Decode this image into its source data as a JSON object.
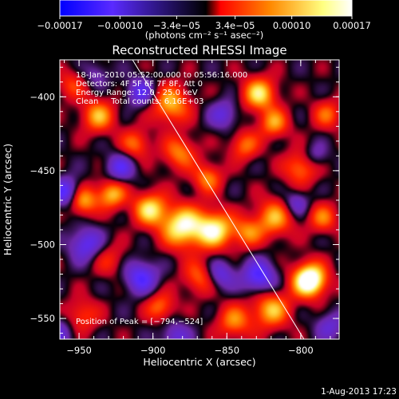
{
  "chart_data": {
    "type": "heatmap",
    "title": "Reconstructed RHESSI Image",
    "xlabel": "Heliocentric X (arcsec)",
    "ylabel": "Heliocentric Y (arcsec)",
    "xlim": [
      -963,
      -774
    ],
    "ylim": [
      -564,
      -375
    ],
    "xticks": [
      -950,
      -900,
      -850,
      -800
    ],
    "xtick_labels": [
      "−950",
      "−900",
      "−850",
      "−800"
    ],
    "yticks": [
      -400,
      -450,
      -500,
      -550
    ],
    "ytick_labels": [
      "−400",
      "−450",
      "−500",
      "−550"
    ],
    "colorbar": {
      "range": [
        -0.00017,
        0.00017
      ],
      "ticks": [
        -0.00017,
        -0.0001,
        -3.4e-05,
        3.4e-05,
        0.0001,
        0.00017
      ],
      "tick_labels": [
        "−0.00017",
        "−0.00010",
        "−3.4e−05",
        "3.4e−05",
        "0.00010",
        "0.00017"
      ],
      "unit_label": "(photons cm⁻² s⁻¹ asec⁻²)",
      "colors": [
        "#0000ff",
        "#5a2aff",
        "#000000",
        "#ff0000",
        "#ff8800",
        "#ffff80",
        "#ffffff"
      ]
    },
    "annotations": [
      "18-Jan-2010 05:52:00.000 to 05:56:16.000",
      "Detectors: 4F 5F 6F 7F 8F, Att 0",
      "Energy Range: 12.0 - 25.0 keV",
      "Clean     Total counts: 6.16E+03"
    ],
    "peak_label": "Position of Peak = [−794,−524]",
    "peak": [
      -794,
      -524
    ],
    "limb_line": {
      "x": [
        -923,
        -796
      ],
      "y": [
        -360,
        -567
      ]
    },
    "image_sources": [
      {
        "x": -880,
        "y": -488,
        "amp": 1.0,
        "sigma": 10
      },
      {
        "x": -858,
        "y": -490,
        "amp": 0.95,
        "sigma": 9
      },
      {
        "x": -902,
        "y": -476,
        "amp": 0.85,
        "sigma": 8
      },
      {
        "x": -928,
        "y": -466,
        "amp": 0.75,
        "sigma": 7
      },
      {
        "x": -948,
        "y": -470,
        "amp": 0.8,
        "sigma": 7
      },
      {
        "x": -937,
        "y": -413,
        "amp": 0.7,
        "sigma": 8
      },
      {
        "x": -912,
        "y": -432,
        "amp": 0.55,
        "sigma": 7
      },
      {
        "x": -882,
        "y": -438,
        "amp": 0.6,
        "sigma": 8
      },
      {
        "x": -888,
        "y": -405,
        "amp": 0.75,
        "sigma": 9
      },
      {
        "x": -863,
        "y": -455,
        "amp": 0.6,
        "sigma": 7
      },
      {
        "x": -828,
        "y": -398,
        "amp": 0.85,
        "sigma": 8
      },
      {
        "x": -818,
        "y": -418,
        "amp": 0.65,
        "sigma": 7
      },
      {
        "x": -838,
        "y": -433,
        "amp": 0.55,
        "sigma": 7
      },
      {
        "x": -800,
        "y": -448,
        "amp": 0.6,
        "sigma": 8
      },
      {
        "x": -818,
        "y": -482,
        "amp": 0.7,
        "sigma": 9
      },
      {
        "x": -836,
        "y": -492,
        "amp": 0.55,
        "sigma": 7
      },
      {
        "x": -794,
        "y": -524,
        "amp": 1.35,
        "sigma": 8
      },
      {
        "x": -820,
        "y": -544,
        "amp": 0.75,
        "sigma": 9
      },
      {
        "x": -868,
        "y": -522,
        "amp": 0.55,
        "sigma": 8
      },
      {
        "x": -895,
        "y": -542,
        "amp": 0.55,
        "sigma": 7
      },
      {
        "x": -845,
        "y": -552,
        "amp": 0.6,
        "sigma": 8
      },
      {
        "x": -948,
        "y": -548,
        "amp": 0.45,
        "sigma": 8
      },
      {
        "x": -782,
        "y": -412,
        "amp": 0.5,
        "sigma": 7
      },
      {
        "x": -785,
        "y": -482,
        "amp": 0.55,
        "sigma": 7
      },
      {
        "x": -930,
        "y": -510,
        "amp": 0.35,
        "sigma": 8
      },
      {
        "x": -955,
        "y": -392,
        "amp": 0.4,
        "sigma": 7
      },
      {
        "x": -958,
        "y": -465,
        "amp": -0.75,
        "sigma": 7
      },
      {
        "x": -922,
        "y": -448,
        "amp": -0.55,
        "sigma": 7
      },
      {
        "x": -908,
        "y": -397,
        "amp": -0.55,
        "sigma": 7
      },
      {
        "x": -945,
        "y": -500,
        "amp": -0.6,
        "sigma": 8
      },
      {
        "x": -908,
        "y": -522,
        "amp": -0.65,
        "sigma": 8
      },
      {
        "x": -885,
        "y": -562,
        "amp": -0.45,
        "sigma": 7
      },
      {
        "x": -852,
        "y": -412,
        "amp": -0.45,
        "sigma": 7
      },
      {
        "x": -855,
        "y": -520,
        "amp": -0.55,
        "sigma": 7
      },
      {
        "x": -828,
        "y": -522,
        "amp": -0.7,
        "sigma": 8
      },
      {
        "x": -803,
        "y": -472,
        "amp": -0.45,
        "sigma": 6
      },
      {
        "x": -790,
        "y": -440,
        "amp": -0.35,
        "sigma": 6
      },
      {
        "x": -780,
        "y": -555,
        "amp": -0.4,
        "sigma": 7
      },
      {
        "x": -965,
        "y": -560,
        "amp": -0.45,
        "sigma": 8
      },
      {
        "x": -938,
        "y": -385,
        "amp": -0.3,
        "sigma": 6
      }
    ]
  },
  "footer": {
    "timestamp": "1-Aug-2013 17:23"
  }
}
